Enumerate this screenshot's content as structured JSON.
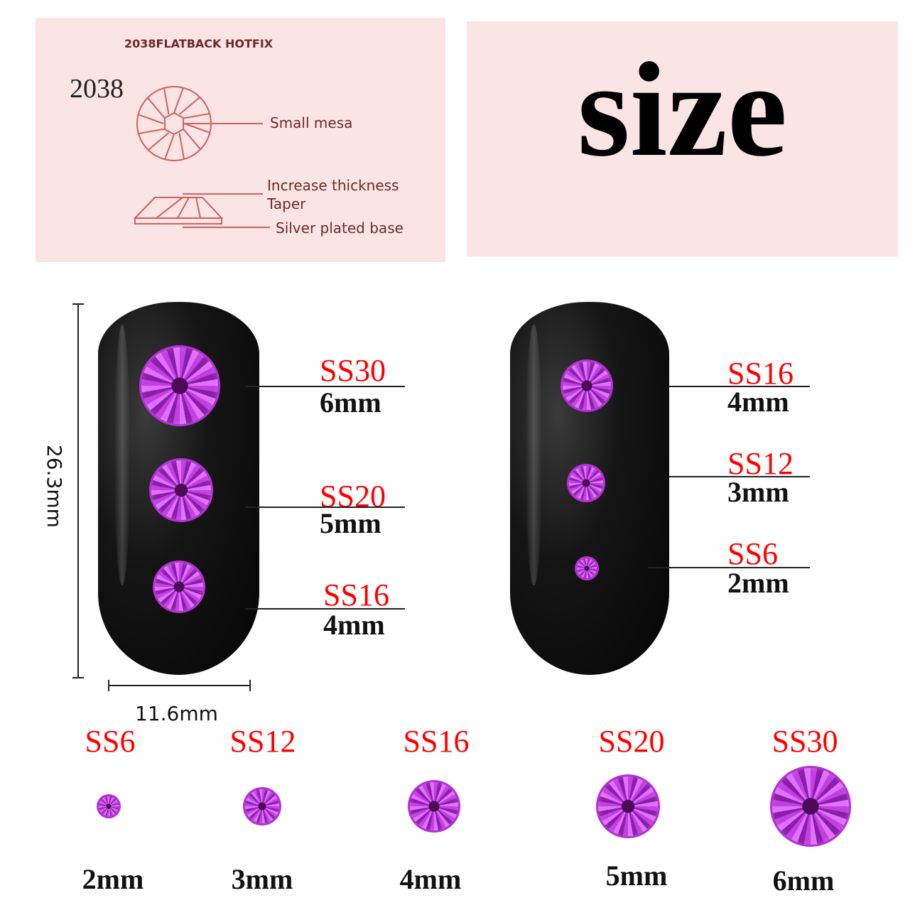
{
  "diagram": {
    "heading": "2038FLATBACK HOTFIX",
    "model": "2038",
    "labels": [
      "Small mesa",
      "Increase thickness",
      "Taper",
      "Silver plated base"
    ],
    "line_color": "#d06060"
  },
  "title": "size",
  "dimensions": {
    "height": "26.3mm",
    "width": "11.6mm"
  },
  "left_nail": [
    {
      "ss": "SS30",
      "mm": "6mm"
    },
    {
      "ss": "SS20",
      "mm": "5mm"
    },
    {
      "ss": "SS16",
      "mm": "4mm"
    }
  ],
  "right_nail": [
    {
      "ss": "SS16",
      "mm": "4mm"
    },
    {
      "ss": "SS12",
      "mm": "3mm"
    },
    {
      "ss": "SS6",
      "mm": "2mm"
    }
  ],
  "size_row": [
    {
      "ss": "SS6",
      "mm": "2mm"
    },
    {
      "ss": "SS12",
      "mm": "3mm"
    },
    {
      "ss": "SS16",
      "mm": "4mm"
    },
    {
      "ss": "SS20",
      "mm": "5mm"
    },
    {
      "ss": "SS30",
      "mm": "6mm"
    }
  ],
  "colors": {
    "label_red": "#ff0000",
    "gem": "#c040e0",
    "panel": "#fbe4e4"
  }
}
